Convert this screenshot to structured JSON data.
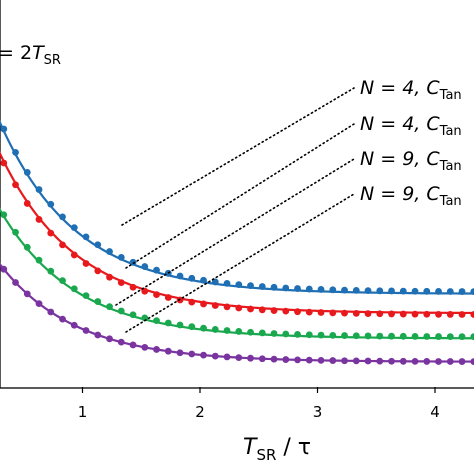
{
  "chart_data": {
    "type": "line",
    "title_fragment": {
      "prefix": "= 2",
      "var": "T",
      "sub": "SR"
    },
    "xlabel": {
      "var": "T",
      "sub": "SR",
      "rest": " / τ"
    },
    "ylabel": "",
    "xlim": [
      0.3,
      4.95
    ],
    "ylim": [
      0,
      10
    ],
    "x_ticks": [
      1,
      2,
      3,
      4
    ],
    "x_tick_labels": [
      "1",
      "2",
      "3",
      "4"
    ],
    "grid": false,
    "series": [
      {
        "color": "#1f6fb4",
        "annotation": {
          "pre": "N = 4, ",
          "var": "C",
          "sub": "Tan"
        },
        "line": {
          "base": 2.4,
          "amp": 4.4,
          "decay": 1.55
        },
        "points": {
          "base": 2.45,
          "amp": 4.4,
          "decay": 1.55
        }
      },
      {
        "color": "#e8191c",
        "annotation": {
          "pre": "N = 4, ",
          "var": "C",
          "sub": "Tan"
        },
        "line": {
          "base": 1.9,
          "amp": 4.1,
          "decay": 1.55
        },
        "points": {
          "base": 1.86,
          "amp": 4.1,
          "decay": 1.55
        }
      },
      {
        "color": "#1aa84f",
        "annotation": {
          "pre": "N = 9, ",
          "var": "C",
          "sub": "Tan"
        },
        "line": {
          "base": 1.25,
          "amp": 3.3,
          "decay": 1.55
        },
        "points": {
          "base": 1.29,
          "amp": 3.3,
          "decay": 1.55
        }
      },
      {
        "color": "#7a34a0",
        "annotation": {
          "pre": "N = 9, ",
          "var": "C",
          "sub": "Tan"
        },
        "line": {
          "base": 0.65,
          "amp": 2.5,
          "decay": 1.55
        },
        "points": {
          "base": 0.65,
          "amp": 2.5,
          "decay": 1.55
        }
      }
    ],
    "point_x": {
      "start": 0.33,
      "step": 0.1,
      "end": 4.93
    },
    "annotation_leader_style": "dotted"
  }
}
